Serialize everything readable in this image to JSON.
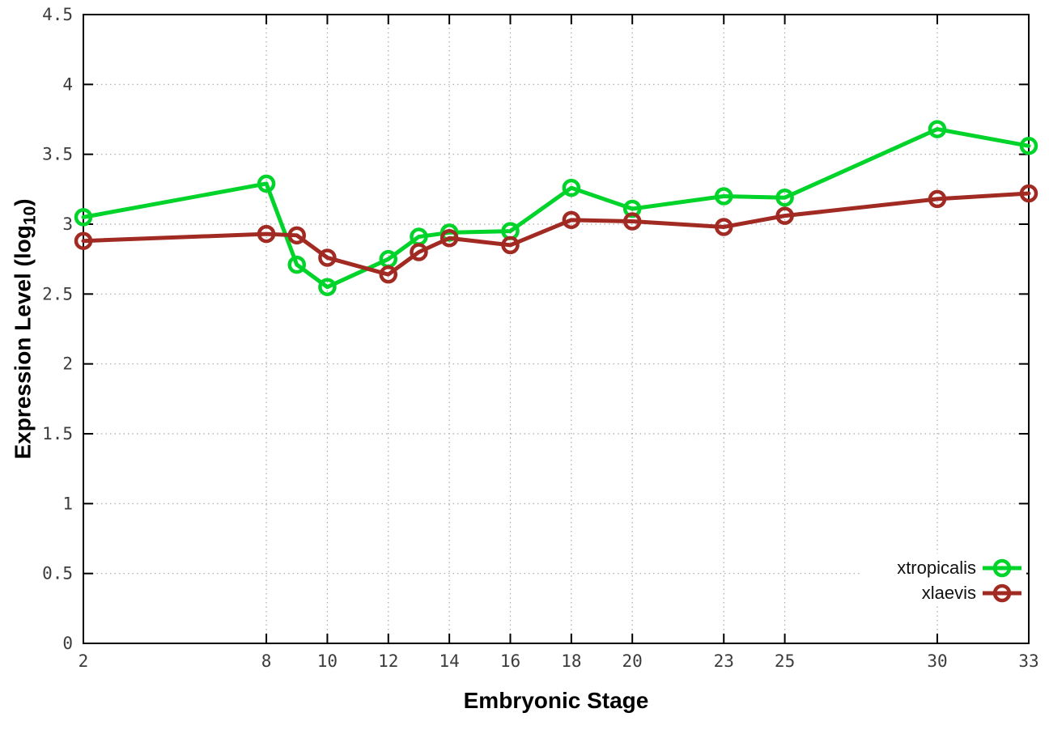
{
  "figure": {
    "background": "#ffffff",
    "xlabel": "Embryonic Stage",
    "ylabel_prefix": "Expression Level (log",
    "ylabel_sub": "10",
    "ylabel_suffix": ")"
  },
  "chart_data": {
    "type": "line",
    "title": "",
    "xlabel": "Embryonic Stage",
    "ylabel": "Expression Level (log10)",
    "xlim": [
      2,
      33
    ],
    "ylim": [
      0,
      4.5
    ],
    "grid": true,
    "legend_position": "inside-bottom-right",
    "x": [
      2,
      8,
      9,
      10,
      12,
      13,
      14,
      16,
      18,
      20,
      23,
      25,
      30,
      33
    ],
    "xtick_values": [
      2,
      8,
      10,
      12,
      14,
      16,
      18,
      20,
      23,
      25,
      30,
      33
    ],
    "xtick_labels": [
      "2",
      "8",
      "10",
      "12",
      "14",
      "16",
      "18",
      "20",
      "23",
      "25",
      "30",
      "33"
    ],
    "ytick_values": [
      0,
      0.5,
      1,
      1.5,
      2,
      2.5,
      3,
      3.5,
      4,
      4.5
    ],
    "ytick_labels": [
      "0",
      "0.5",
      "1",
      "1.5",
      "2",
      "2.5",
      "3",
      "3.5",
      "4",
      "4.5"
    ],
    "series": [
      {
        "name": "xtropicalis",
        "color": "#00D42A",
        "marker": "open-circle",
        "values": [
          3.05,
          3.29,
          2.71,
          2.55,
          2.75,
          2.91,
          2.94,
          2.95,
          3.26,
          3.11,
          3.2,
          3.19,
          3.68,
          3.56
        ]
      },
      {
        "name": "xlaevis",
        "color": "#A12A22",
        "marker": "open-circle",
        "values": [
          2.88,
          2.93,
          2.92,
          2.76,
          2.64,
          2.8,
          2.9,
          2.85,
          3.03,
          3.02,
          2.98,
          3.06,
          3.18,
          3.22
        ]
      }
    ],
    "style": {
      "grid_color": "#a8a8a8",
      "axis_color": "#000000",
      "tick_text_color": "#3c3c3c",
      "legend_text_color": "#111111",
      "line_width": 5,
      "marker_radius": 9,
      "marker_stroke": 4.5
    }
  }
}
